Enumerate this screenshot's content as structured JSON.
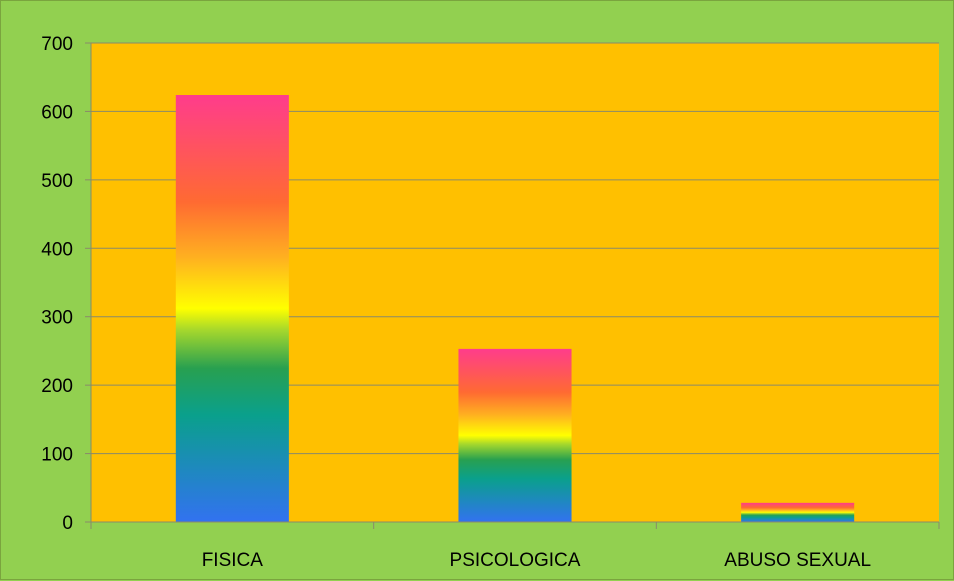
{
  "colors": {
    "background": "#92D050",
    "plot_area": "#FFC000",
    "gridline": "#8A8A6A",
    "gradient_stops": [
      "#3272F0",
      "#0AA08C",
      "#28A050",
      "#A6D82C",
      "#FFFF00",
      "#FFB020",
      "#FF6A32",
      "#FF3C8C"
    ]
  },
  "chart_data": {
    "type": "bar",
    "categories": [
      "FISICA",
      "PSICOLOGICA",
      "ABUSO SEXUAL"
    ],
    "values": [
      624,
      253,
      28
    ],
    "title": "",
    "xlabel": "",
    "ylabel": "",
    "ylim": [
      0,
      700
    ],
    "yticks": [
      0,
      100,
      200,
      300,
      400,
      500,
      600,
      700
    ],
    "grid": true,
    "legend": "none"
  }
}
